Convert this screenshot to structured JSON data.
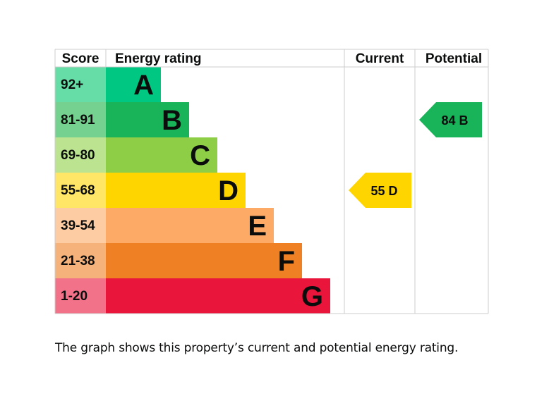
{
  "chart_data": {
    "type": "bar",
    "headers": {
      "score": "Score",
      "energy_rating": "Energy rating",
      "current": "Current",
      "potential": "Potential"
    },
    "bands": [
      {
        "letter": "A",
        "score_range": "92+",
        "color": "#00c781",
        "score_bg": "#66dca6"
      },
      {
        "letter": "B",
        "score_range": "81-91",
        "color": "#19b459",
        "score_bg": "#75d18f"
      },
      {
        "letter": "C",
        "score_range": "69-80",
        "color": "#8dce46",
        "score_bg": "#bbe390"
      },
      {
        "letter": "D",
        "score_range": "55-68",
        "color": "#ffd500",
        "score_bg": "#ffe666"
      },
      {
        "letter": "E",
        "score_range": "39-54",
        "color": "#fcaa65",
        "score_bg": "#fdcca3"
      },
      {
        "letter": "F",
        "score_range": "21-38",
        "color": "#ef8023",
        "score_bg": "#f5b37b"
      },
      {
        "letter": "G",
        "score_range": "1-20",
        "color": "#e9153b",
        "score_bg": "#f27389"
      }
    ],
    "current": {
      "value": 55,
      "letter": "D",
      "label": "55 D",
      "color": "#ffd500"
    },
    "potential": {
      "value": 84,
      "letter": "B",
      "label": "84 B",
      "color": "#19b459"
    },
    "grid_color": "#cccccc"
  },
  "caption": "The graph shows this property’s current and potential energy rating."
}
